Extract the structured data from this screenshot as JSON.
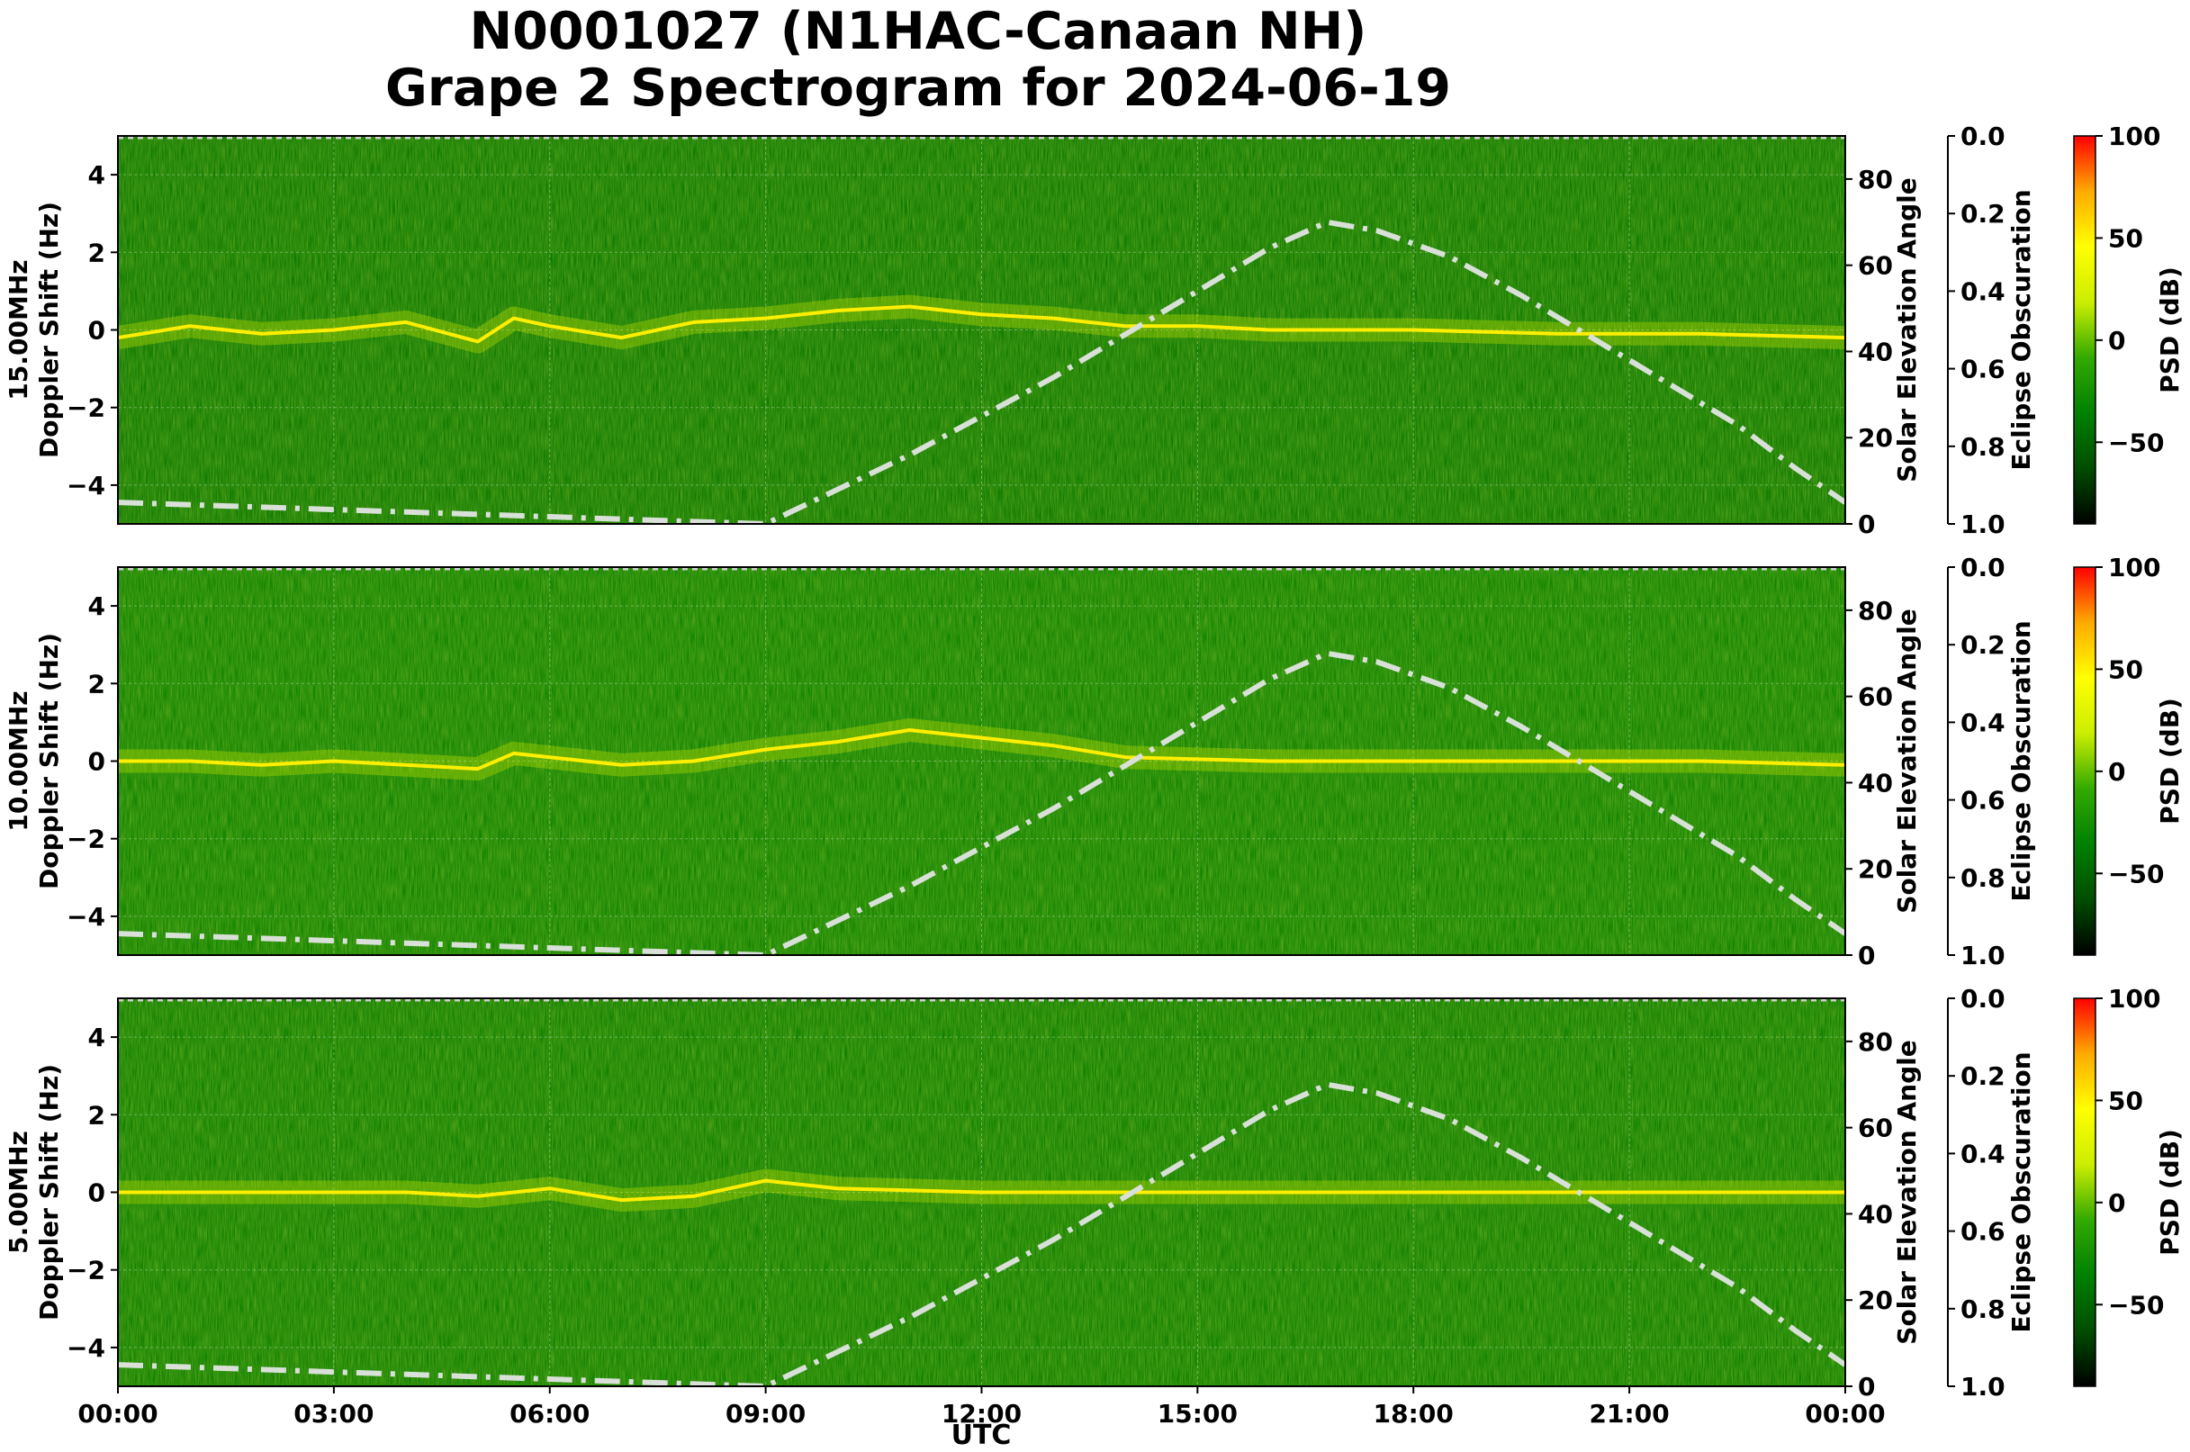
{
  "chart_data": {
    "type": "heatmap",
    "title_line1": "N0001027 (N1HAC-Canaan NH)",
    "title_line2": "Grape 2 Spectrogram for 2024-06-19",
    "xlabel": "UTC",
    "x_ticks": [
      "00:00",
      "03:00",
      "06:00",
      "09:00",
      "12:00",
      "15:00",
      "18:00",
      "21:00",
      "00:00"
    ],
    "x_range_hours": [
      0,
      24
    ],
    "y_label_common": "Doppler Shift (Hz)",
    "y_range": [
      -5,
      5
    ],
    "y_ticks": [
      4,
      2,
      0,
      -2,
      -4
    ],
    "grid": true,
    "right_axis_label": "Solar Elevation Angle",
    "right_axis_range": [
      0,
      90
    ],
    "right_axis_ticks": [
      80,
      60,
      40,
      20,
      0
    ],
    "eclipse_axis_label": "Eclipse Obscuration",
    "eclipse_axis_range": [
      0,
      1
    ],
    "eclipse_ticks": [
      "0.0",
      "0.2",
      "0.4",
      "0.6",
      "0.8",
      "1.0"
    ],
    "colorbar_label": "PSD (dB)",
    "colorbar_range": [
      -90,
      100
    ],
    "colorbar_ticks": [
      100,
      50,
      0,
      -50
    ],
    "colorbar_colors": [
      "#000000",
      "#004d00",
      "#008000",
      "#33aa00",
      "#ccee00",
      "#ffff00",
      "#ffaa00",
      "#ff0000"
    ],
    "solar_elevation_curve": {
      "style": "dash-dot",
      "color": "#d8e0d8",
      "points": [
        {
          "utc": 0.0,
          "elevation": 5
        },
        {
          "utc": 9.0,
          "elevation": 0
        },
        {
          "utc": 10.0,
          "elevation": 8
        },
        {
          "utc": 11.0,
          "elevation": 16
        },
        {
          "utc": 12.0,
          "elevation": 25
        },
        {
          "utc": 13.0,
          "elevation": 34
        },
        {
          "utc": 14.0,
          "elevation": 44
        },
        {
          "utc": 15.0,
          "elevation": 54
        },
        {
          "utc": 16.0,
          "elevation": 64
        },
        {
          "utc": 16.8,
          "elevation": 70
        },
        {
          "utc": 17.5,
          "elevation": 68
        },
        {
          "utc": 18.5,
          "elevation": 62
        },
        {
          "utc": 19.5,
          "elevation": 53
        },
        {
          "utc": 20.5,
          "elevation": 43
        },
        {
          "utc": 21.5,
          "elevation": 33
        },
        {
          "utc": 22.5,
          "elevation": 23
        },
        {
          "utc": 23.3,
          "elevation": 13
        },
        {
          "utc": 24.0,
          "elevation": 5
        }
      ]
    },
    "panels": [
      {
        "name": "15.00MHz",
        "ylabel": "Doppler Shift (Hz)",
        "background": "#0d7a00",
        "trace": [
          {
            "utc": 0.0,
            "doppler": -0.2
          },
          {
            "utc": 1.0,
            "doppler": 0.1
          },
          {
            "utc": 2.0,
            "doppler": -0.1
          },
          {
            "utc": 3.0,
            "doppler": 0.0
          },
          {
            "utc": 4.0,
            "doppler": 0.2
          },
          {
            "utc": 5.0,
            "doppler": -0.3
          },
          {
            "utc": 5.5,
            "doppler": 0.3
          },
          {
            "utc": 6.0,
            "doppler": 0.1
          },
          {
            "utc": 7.0,
            "doppler": -0.2
          },
          {
            "utc": 8.0,
            "doppler": 0.2
          },
          {
            "utc": 9.0,
            "doppler": 0.3
          },
          {
            "utc": 10.0,
            "doppler": 0.5
          },
          {
            "utc": 11.0,
            "doppler": 0.6
          },
          {
            "utc": 12.0,
            "doppler": 0.4
          },
          {
            "utc": 13.0,
            "doppler": 0.3
          },
          {
            "utc": 14.0,
            "doppler": 0.1
          },
          {
            "utc": 15.0,
            "doppler": 0.1
          },
          {
            "utc": 16.0,
            "doppler": 0.0
          },
          {
            "utc": 18.0,
            "doppler": 0.0
          },
          {
            "utc": 20.0,
            "doppler": -0.1
          },
          {
            "utc": 22.0,
            "doppler": -0.1
          },
          {
            "utc": 24.0,
            "doppler": -0.2
          }
        ]
      },
      {
        "name": "10.00MHz",
        "ylabel": "Doppler Shift (Hz)",
        "background": "#108300",
        "trace": [
          {
            "utc": 0.0,
            "doppler": 0.0
          },
          {
            "utc": 1.0,
            "doppler": 0.0
          },
          {
            "utc": 2.0,
            "doppler": -0.1
          },
          {
            "utc": 3.0,
            "doppler": 0.0
          },
          {
            "utc": 4.0,
            "doppler": -0.1
          },
          {
            "utc": 5.0,
            "doppler": -0.2
          },
          {
            "utc": 5.5,
            "doppler": 0.2
          },
          {
            "utc": 6.0,
            "doppler": 0.1
          },
          {
            "utc": 7.0,
            "doppler": -0.1
          },
          {
            "utc": 8.0,
            "doppler": 0.0
          },
          {
            "utc": 9.0,
            "doppler": 0.3
          },
          {
            "utc": 10.0,
            "doppler": 0.5
          },
          {
            "utc": 11.0,
            "doppler": 0.8
          },
          {
            "utc": 12.0,
            "doppler": 0.6
          },
          {
            "utc": 13.0,
            "doppler": 0.4
          },
          {
            "utc": 14.0,
            "doppler": 0.1
          },
          {
            "utc": 16.0,
            "doppler": 0.0
          },
          {
            "utc": 18.0,
            "doppler": 0.0
          },
          {
            "utc": 20.0,
            "doppler": 0.0
          },
          {
            "utc": 22.0,
            "doppler": 0.0
          },
          {
            "utc": 24.0,
            "doppler": -0.1
          }
        ]
      },
      {
        "name": "5.00MHz",
        "ylabel": "Doppler Shift (Hz)",
        "background": "#0f8000",
        "trace": [
          {
            "utc": 0.0,
            "doppler": 0.0
          },
          {
            "utc": 2.0,
            "doppler": 0.0
          },
          {
            "utc": 4.0,
            "doppler": 0.0
          },
          {
            "utc": 5.0,
            "doppler": -0.1
          },
          {
            "utc": 6.0,
            "doppler": 0.1
          },
          {
            "utc": 7.0,
            "doppler": -0.2
          },
          {
            "utc": 8.0,
            "doppler": -0.1
          },
          {
            "utc": 9.0,
            "doppler": 0.3
          },
          {
            "utc": 10.0,
            "doppler": 0.1
          },
          {
            "utc": 12.0,
            "doppler": 0.0
          },
          {
            "utc": 24.0,
            "doppler": 0.0
          }
        ]
      }
    ]
  }
}
